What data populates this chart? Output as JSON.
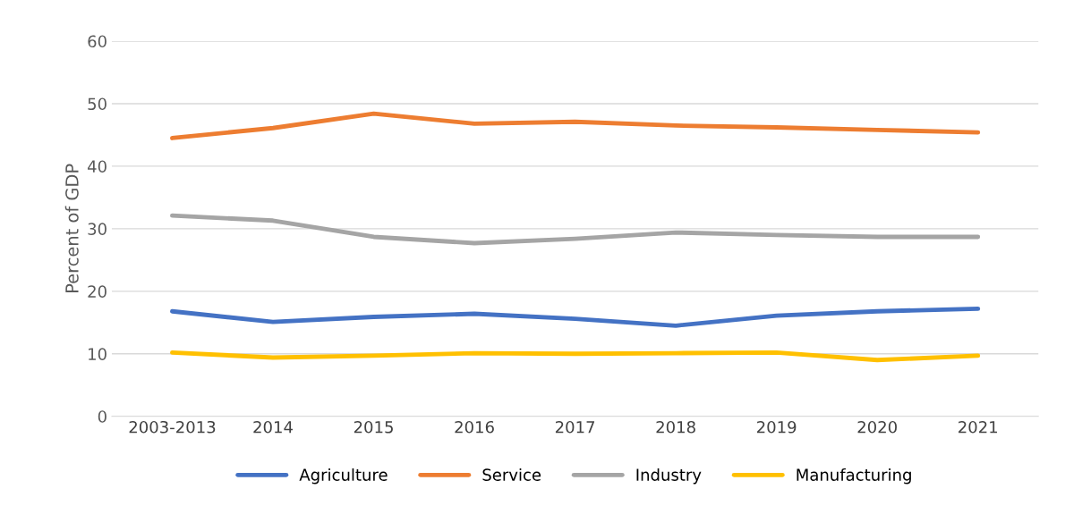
{
  "chart_data": {
    "type": "line",
    "ylabel": "Percent of GDP",
    "categories": [
      "2003-2013",
      "2014",
      "2015",
      "2016",
      "2017",
      "2018",
      "2019",
      "2020",
      "2021"
    ],
    "series": [
      {
        "name": "Agriculture",
        "color": "#4472c4",
        "values": [
          16.8,
          15.1,
          15.9,
          16.4,
          15.6,
          14.5,
          16.1,
          16.8,
          17.2
        ]
      },
      {
        "name": "Service",
        "color": "#ed7d31",
        "values": [
          44.5,
          46.1,
          48.4,
          46.8,
          47.1,
          46.5,
          46.2,
          45.8,
          45.4
        ]
      },
      {
        "name": "Industry",
        "color": "#a5a5a5",
        "values": [
          32.1,
          31.3,
          28.7,
          27.7,
          28.4,
          29.4,
          29.0,
          28.7,
          28.7
        ]
      },
      {
        "name": "Manufacturing",
        "color": "#ffc000",
        "values": [
          10.2,
          9.4,
          9.7,
          10.1,
          10.0,
          10.1,
          10.2,
          9.0,
          9.7
        ]
      }
    ],
    "ylim": [
      0,
      60
    ],
    "yticks": [
      0,
      10,
      20,
      30,
      40,
      50,
      60
    ],
    "grid": "y",
    "legend": "bottom",
    "marker": "none",
    "line_style": "solid"
  }
}
